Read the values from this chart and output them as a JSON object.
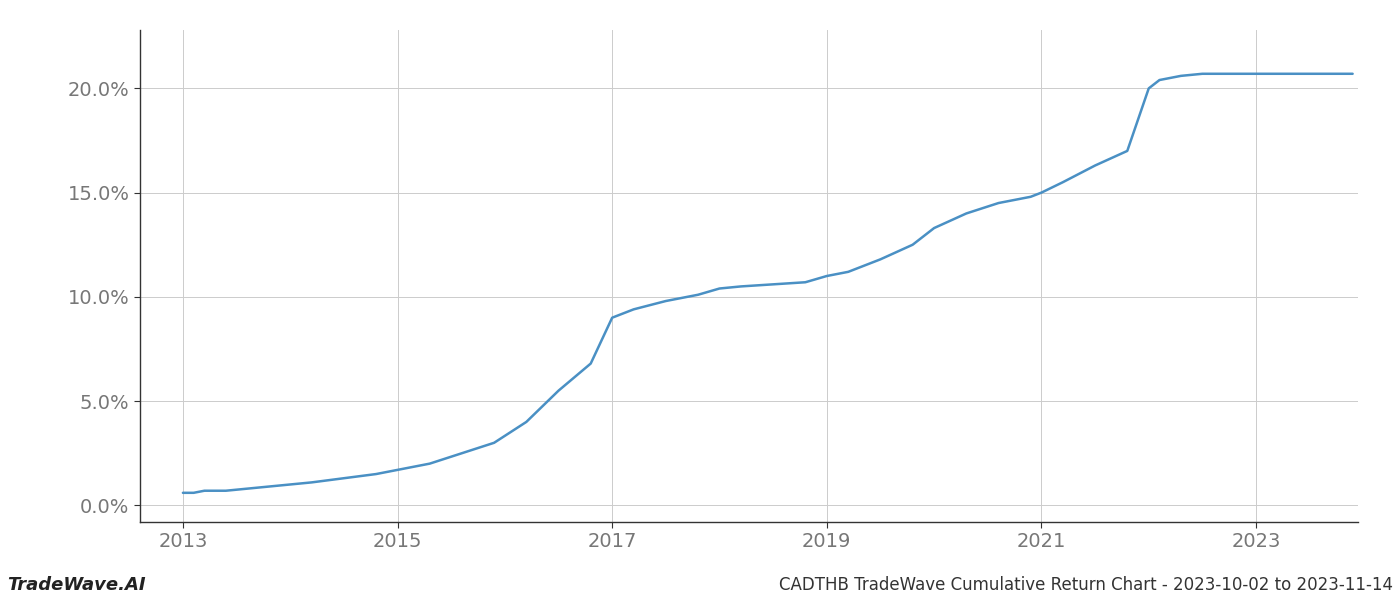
{
  "title": "CADTHB TradeWave Cumulative Return Chart - 2023-10-02 to 2023-11-14",
  "watermark": "TradeWave.AI",
  "line_color": "#4a90c4",
  "background_color": "#ffffff",
  "grid_color": "#cccccc",
  "x_years": [
    2013.0,
    2013.1,
    2013.2,
    2013.4,
    2013.6,
    2013.8,
    2014.0,
    2014.2,
    2014.5,
    2014.8,
    2015.0,
    2015.3,
    2015.6,
    2015.9,
    2016.2,
    2016.5,
    2016.8,
    2017.0,
    2017.2,
    2017.5,
    2017.8,
    2018.0,
    2018.2,
    2018.5,
    2018.8,
    2019.0,
    2019.2,
    2019.5,
    2019.8,
    2020.0,
    2020.3,
    2020.6,
    2020.9,
    2021.0,
    2021.2,
    2021.5,
    2021.8,
    2022.0,
    2022.1,
    2022.3,
    2022.5,
    2022.6,
    2022.7,
    2022.8,
    2022.9,
    2023.0,
    2023.3,
    2023.6,
    2023.9
  ],
  "y_values": [
    0.006,
    0.006,
    0.007,
    0.007,
    0.008,
    0.009,
    0.01,
    0.011,
    0.013,
    0.015,
    0.017,
    0.02,
    0.025,
    0.03,
    0.04,
    0.055,
    0.068,
    0.09,
    0.094,
    0.098,
    0.101,
    0.104,
    0.105,
    0.106,
    0.107,
    0.11,
    0.112,
    0.118,
    0.125,
    0.133,
    0.14,
    0.145,
    0.148,
    0.15,
    0.155,
    0.163,
    0.17,
    0.2,
    0.204,
    0.206,
    0.207,
    0.207,
    0.207,
    0.207,
    0.207,
    0.207,
    0.207,
    0.207,
    0.207
  ],
  "xlim": [
    2012.6,
    2023.95
  ],
  "ylim": [
    -0.008,
    0.228
  ],
  "xticks": [
    2013,
    2015,
    2017,
    2019,
    2021,
    2023
  ],
  "yticks": [
    0.0,
    0.05,
    0.1,
    0.15,
    0.2
  ],
  "ytick_labels": [
    "0.0%",
    "5.0%",
    "10.0%",
    "15.0%",
    "20.0%"
  ],
  "line_width": 1.8,
  "title_fontsize": 12,
  "tick_fontsize": 14,
  "watermark_fontsize": 13,
  "spine_color": "#333333"
}
